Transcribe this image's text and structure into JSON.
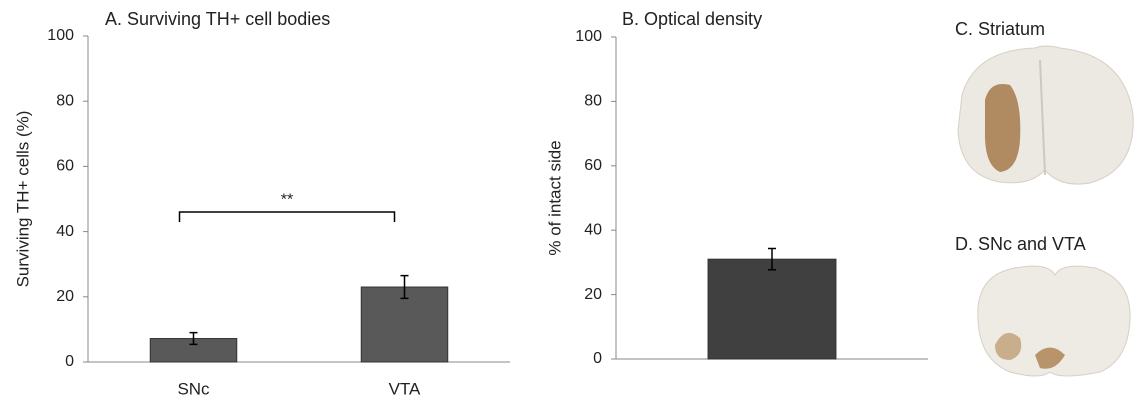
{
  "chart_data": [
    {
      "type": "bar",
      "title": "A. Surviving  TH+ cell bodies",
      "y_label": "Surviving TH+ cells (%)",
      "categories": [
        "SNc",
        "VTA"
      ],
      "values": [
        7.2,
        23
      ],
      "errors": [
        1.8,
        3.5
      ],
      "color": "#595959",
      "ylim": [
        0,
        100
      ],
      "yticks": [
        0,
        20,
        40,
        60,
        80,
        100
      ],
      "bracket": {
        "text": "**",
        "between": [
          0,
          1
        ],
        "y": 46
      }
    },
    {
      "type": "bar",
      "title": "B. Optical density",
      "y_label": "% of intact side",
      "categories": [
        null
      ],
      "values": [
        31
      ],
      "errors": [
        3.3
      ],
      "color": "#404040",
      "ylim": [
        0,
        100
      ],
      "yticks": [
        0,
        20,
        40,
        60,
        80,
        100
      ]
    }
  ],
  "images": [
    {
      "title": "C. Striatum"
    },
    {
      "title": "D. SNc and VTA"
    }
  ]
}
